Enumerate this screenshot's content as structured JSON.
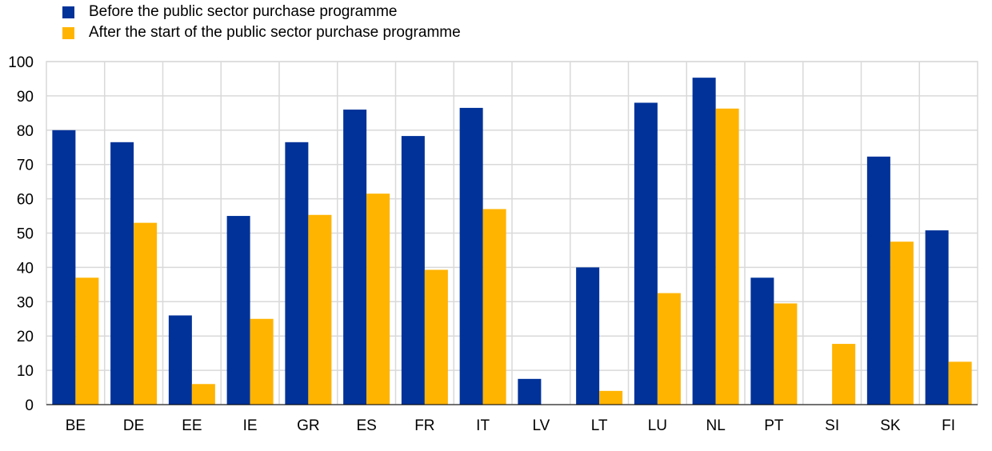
{
  "chart_data": {
    "type": "bar",
    "title": "",
    "xlabel": "",
    "ylabel": "",
    "ylim": [
      0,
      100
    ],
    "yticks": [
      0,
      10,
      20,
      30,
      40,
      50,
      60,
      70,
      80,
      90,
      100
    ],
    "grid": true,
    "legend_position": "top-left",
    "categories": [
      "BE",
      "DE",
      "EE",
      "IE",
      "GR",
      "ES",
      "FR",
      "IT",
      "LV",
      "LT",
      "LU",
      "NL",
      "PT",
      "SI",
      "SK",
      "FI"
    ],
    "series": [
      {
        "name": "Before the public sector purchase programme",
        "color": "#003299",
        "values": [
          80,
          76.5,
          26,
          55,
          76.5,
          86,
          78.3,
          86.5,
          7.5,
          40,
          88,
          95.3,
          37,
          0,
          72.3,
          50.8
        ]
      },
      {
        "name": "After the start of the public sector purchase programme",
        "color": "#FFB400",
        "values": [
          37,
          53,
          6,
          25,
          55.3,
          61.5,
          39.3,
          57,
          0,
          4,
          32.5,
          86.3,
          29.5,
          17.7,
          47.5,
          12.5
        ]
      }
    ]
  }
}
